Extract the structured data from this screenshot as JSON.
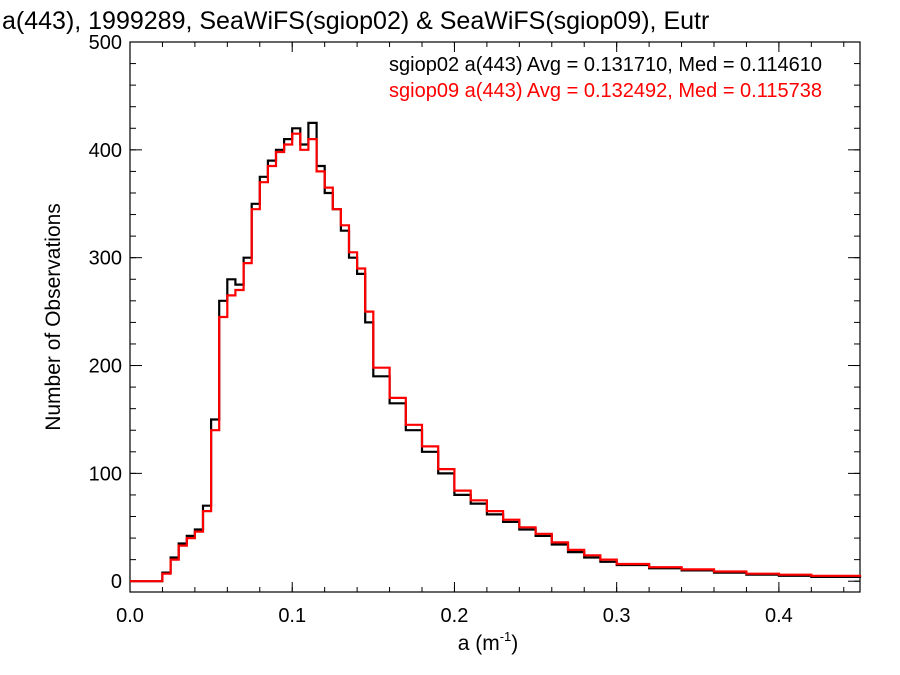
{
  "chart_data": {
    "type": "line",
    "title": "a(443), 1999289, SeaWiFS(sgiop02) & SeaWiFS(sgiop09), Eutr",
    "xlabel": "a (m",
    "xlabel_sup": "-1",
    "xlabel_close": ")",
    "ylabel": "Number of Observations",
    "xlim": [
      0.0,
      0.45
    ],
    "ylim": [
      -10,
      500
    ],
    "xticks": [
      0.0,
      0.1,
      0.2,
      0.3,
      0.4
    ],
    "xtick_labels": [
      "0.0",
      "0.1",
      "0.2",
      "0.3",
      "0.4"
    ],
    "yticks": [
      0,
      100,
      200,
      300,
      400,
      500
    ],
    "ytick_labels": [
      "0",
      "100",
      "200",
      "300",
      "400",
      "500"
    ],
    "grid": false,
    "legend_position": "top-right",
    "series": [
      {
        "label": "sgiop02 a(443) Avg = 0.131710, Med = 0.114610",
        "color": "#000000",
        "step": "histogram",
        "x": [
          0.0,
          0.02,
          0.025,
          0.03,
          0.035,
          0.04,
          0.045,
          0.05,
          0.055,
          0.06,
          0.065,
          0.07,
          0.075,
          0.08,
          0.085,
          0.09,
          0.095,
          0.1,
          0.105,
          0.11,
          0.115,
          0.12,
          0.125,
          0.13,
          0.135,
          0.14,
          0.145,
          0.15,
          0.16,
          0.17,
          0.18,
          0.19,
          0.2,
          0.21,
          0.22,
          0.23,
          0.24,
          0.25,
          0.26,
          0.27,
          0.28,
          0.29,
          0.3,
          0.32,
          0.34,
          0.36,
          0.38,
          0.4,
          0.42,
          0.45
        ],
        "y": [
          0,
          8,
          22,
          35,
          42,
          48,
          70,
          150,
          260,
          280,
          275,
          300,
          350,
          375,
          390,
          400,
          410,
          420,
          405,
          425,
          385,
          360,
          345,
          325,
          300,
          285,
          240,
          190,
          165,
          140,
          120,
          100,
          80,
          72,
          62,
          55,
          48,
          42,
          34,
          27,
          22,
          18,
          15,
          12,
          10,
          8,
          6,
          5,
          4,
          3
        ]
      },
      {
        "label": "sgiop09 a(443) Avg = 0.132492, Med = 0.115738",
        "color": "#ff0000",
        "step": "histogram",
        "x": [
          0.0,
          0.02,
          0.025,
          0.03,
          0.035,
          0.04,
          0.045,
          0.05,
          0.055,
          0.06,
          0.065,
          0.07,
          0.075,
          0.08,
          0.085,
          0.09,
          0.095,
          0.1,
          0.105,
          0.11,
          0.115,
          0.12,
          0.125,
          0.13,
          0.135,
          0.14,
          0.145,
          0.15,
          0.16,
          0.17,
          0.18,
          0.19,
          0.2,
          0.21,
          0.22,
          0.23,
          0.24,
          0.25,
          0.26,
          0.27,
          0.28,
          0.29,
          0.3,
          0.32,
          0.34,
          0.36,
          0.38,
          0.4,
          0.42,
          0.45
        ],
        "y": [
          0,
          7,
          20,
          33,
          40,
          46,
          65,
          140,
          245,
          265,
          270,
          295,
          345,
          370,
          385,
          398,
          405,
          415,
          400,
          410,
          380,
          365,
          345,
          330,
          305,
          290,
          250,
          198,
          170,
          145,
          125,
          104,
          84,
          75,
          65,
          57,
          50,
          44,
          36,
          29,
          24,
          20,
          16,
          13,
          11,
          9,
          7,
          6,
          5,
          4
        ]
      }
    ]
  }
}
